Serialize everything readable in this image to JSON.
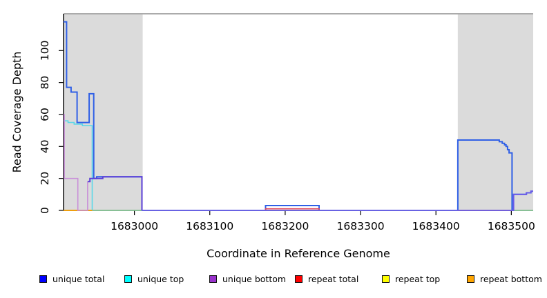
{
  "chart_data": {
    "type": "line",
    "title": "",
    "xlabel": "Coordinate in Reference Genome",
    "ylabel": "Read Coverage Depth",
    "xlim": [
      1682906,
      1683529
    ],
    "ylim": [
      0,
      123
    ],
    "x_ticks": [
      1683000,
      1683100,
      1683200,
      1683300,
      1683400,
      1683500
    ],
    "x_tick_labels": [
      "1683000",
      "1683100",
      "1683200",
      "1683300",
      "1683400",
      "1683500"
    ],
    "y_ticks": [
      0,
      20,
      40,
      60,
      80,
      100
    ],
    "y_tick_labels": [
      "0",
      "20",
      "40",
      "60",
      "80",
      "100"
    ],
    "grid": false,
    "legend_position": "bottom",
    "colors": {
      "shaded_region": "#DBDBDB",
      "plot_top_border": "#8F8F8F",
      "axis": "#000000"
    },
    "shaded_regions": [
      {
        "x0": 1682906,
        "x1": 1683011
      },
      {
        "x0": 1683429,
        "x1": 1683529
      }
    ],
    "series": [
      {
        "name": "unique total",
        "legend_color": "#0000FF",
        "points": [
          [
            1682906,
            118
          ],
          [
            1682910,
            118
          ],
          [
            1682910,
            77
          ],
          [
            1682916,
            77
          ],
          [
            1682916,
            74
          ],
          [
            1682924,
            74
          ],
          [
            1682924,
            55
          ],
          [
            1682940,
            55
          ],
          [
            1682940,
            73
          ],
          [
            1682946,
            73
          ],
          [
            1682946,
            20
          ],
          [
            1682950,
            20
          ],
          [
            1682950,
            21
          ],
          [
            1683010,
            21
          ],
          [
            1683010,
            0
          ],
          [
            1683174,
            0
          ],
          [
            1683174,
            3
          ],
          [
            1683245,
            3
          ],
          [
            1683245,
            0
          ],
          [
            1683429,
            0
          ],
          [
            1683429,
            44
          ],
          [
            1683484,
            44
          ],
          [
            1683484,
            43
          ],
          [
            1683488,
            43
          ],
          [
            1683488,
            42
          ],
          [
            1683491,
            42
          ],
          [
            1683491,
            41
          ],
          [
            1683493,
            41
          ],
          [
            1683493,
            40
          ],
          [
            1683495,
            40
          ],
          [
            1683495,
            38
          ],
          [
            1683497,
            38
          ],
          [
            1683497,
            36
          ],
          [
            1683501,
            36
          ],
          [
            1683501,
            0
          ],
          [
            1683503,
            0
          ],
          [
            1683503,
            10
          ],
          [
            1683520,
            10
          ],
          [
            1683520,
            11
          ],
          [
            1683526,
            11
          ],
          [
            1683526,
            12
          ],
          [
            1683529,
            12
          ]
        ]
      },
      {
        "name": "unique top",
        "legend_color": "#00FFFF",
        "points": [
          [
            1682906,
            56
          ],
          [
            1682912,
            56
          ],
          [
            1682912,
            55
          ],
          [
            1682920,
            55
          ],
          [
            1682920,
            54
          ],
          [
            1682931,
            54
          ],
          [
            1682931,
            53
          ],
          [
            1682944,
            53
          ],
          [
            1682944,
            0
          ],
          [
            1683529,
            0
          ]
        ]
      },
      {
        "name": "unique bottom",
        "legend_color": "#9932CC",
        "points": [
          [
            1682906,
            60
          ],
          [
            1682907,
            60
          ],
          [
            1682907,
            20
          ],
          [
            1682925,
            20
          ],
          [
            1682925,
            0
          ],
          [
            1682938,
            0
          ],
          [
            1682938,
            18
          ],
          [
            1682941,
            18
          ],
          [
            1682941,
            20
          ],
          [
            1682958,
            20
          ],
          [
            1682958,
            21
          ],
          [
            1683010,
            21
          ],
          [
            1683010,
            0
          ],
          [
            1683503,
            0
          ],
          [
            1683503,
            10
          ],
          [
            1683520,
            10
          ],
          [
            1683520,
            11
          ],
          [
            1683526,
            11
          ],
          [
            1683526,
            12
          ],
          [
            1683529,
            12
          ]
        ]
      },
      {
        "name": "repeat total",
        "legend_color": "#FF0000",
        "points": [
          [
            1682906,
            0
          ],
          [
            1683174,
            0
          ],
          [
            1683174,
            1
          ],
          [
            1683245,
            1
          ],
          [
            1683245,
            0
          ],
          [
            1683529,
            0
          ]
        ]
      },
      {
        "name": "repeat top",
        "legend_color": "#FFFF00",
        "points": [
          [
            1682906,
            0
          ],
          [
            1683529,
            0
          ]
        ]
      },
      {
        "name": "repeat bottom",
        "legend_color": "#FFA500",
        "points": [
          [
            1682906,
            0
          ],
          [
            1683529,
            0
          ]
        ]
      }
    ],
    "draw": [
      {
        "series": "unique total",
        "color": "#2F5FE6",
        "width": 2,
        "points": [
          [
            1682906,
            118
          ],
          [
            1682910,
            118
          ],
          [
            1682910,
            77
          ],
          [
            1682916,
            77
          ],
          [
            1682916,
            74
          ],
          [
            1682924,
            74
          ],
          [
            1682924,
            55
          ],
          [
            1682940,
            55
          ],
          [
            1682940,
            73
          ],
          [
            1682946,
            73
          ],
          [
            1682946,
            20
          ],
          [
            1682950,
            20
          ],
          [
            1682950,
            21
          ],
          [
            1683010,
            21
          ],
          [
            1683010,
            0
          ],
          [
            1683174,
            0
          ],
          [
            1683174,
            3
          ],
          [
            1683245,
            3
          ],
          [
            1683245,
            0
          ],
          [
            1683429,
            0
          ],
          [
            1683429,
            44
          ],
          [
            1683484,
            44
          ],
          [
            1683484,
            43
          ],
          [
            1683488,
            43
          ],
          [
            1683488,
            42
          ],
          [
            1683491,
            42
          ],
          [
            1683491,
            41
          ],
          [
            1683493,
            41
          ],
          [
            1683493,
            40
          ],
          [
            1683495,
            40
          ],
          [
            1683495,
            38
          ],
          [
            1683497,
            38
          ],
          [
            1683497,
            36
          ],
          [
            1683501,
            36
          ],
          [
            1683501,
            0
          ],
          [
            1683503,
            0
          ],
          [
            1683503,
            10
          ],
          [
            1683520,
            10
          ],
          [
            1683520,
            11
          ],
          [
            1683526,
            11
          ],
          [
            1683526,
            12
          ],
          [
            1683529,
            12
          ]
        ]
      },
      {
        "series": "unique top",
        "color": "#5CD8E8",
        "width": 1.6,
        "points": [
          [
            1682906,
            56
          ],
          [
            1682912,
            56
          ],
          [
            1682912,
            55
          ],
          [
            1682920,
            55
          ],
          [
            1682920,
            54
          ],
          [
            1682931,
            54
          ],
          [
            1682931,
            53
          ],
          [
            1682944,
            53
          ],
          [
            1682944,
            0
          ]
        ]
      },
      {
        "series": "unique top / repeat top overlap baseline",
        "color": "#8FD8A0",
        "width": 1.4,
        "points": [
          [
            1682944,
            0
          ],
          [
            1683529,
            0
          ]
        ]
      },
      {
        "series": "repeat bottom",
        "color": "#FFA500",
        "width": 1.8,
        "points": [
          [
            1682906,
            0
          ],
          [
            1682944,
            0
          ]
        ]
      },
      {
        "series": "repeat total",
        "color": "#E04858",
        "width": 1.6,
        "points": [
          [
            1683174,
            0
          ],
          [
            1683174,
            1
          ],
          [
            1683245,
            1
          ],
          [
            1683245,
            0
          ]
        ]
      },
      {
        "series": "repeat total",
        "color": "#E04858",
        "width": 1.6,
        "points": [
          [
            1683429,
            0
          ],
          [
            1683501,
            0
          ]
        ]
      },
      {
        "series": "unique bottom",
        "color": "#C98FD8",
        "width": 1.6,
        "points": [
          [
            1682906,
            60
          ],
          [
            1682907,
            60
          ],
          [
            1682907,
            20
          ],
          [
            1682925,
            20
          ],
          [
            1682925,
            0
          ],
          [
            1682938,
            0
          ],
          [
            1682938,
            18
          ]
        ]
      },
      {
        "series": "unique bottom",
        "color": "#5B3FD8",
        "width": 2,
        "points": [
          [
            1682938,
            18
          ],
          [
            1682941,
            18
          ],
          [
            1682941,
            20
          ],
          [
            1682958,
            20
          ],
          [
            1682958,
            21
          ],
          [
            1683010,
            21
          ],
          [
            1683010,
            0
          ]
        ]
      },
      {
        "series": "unique bottom",
        "color": "#6A5AE8",
        "width": 1.8,
        "points": [
          [
            1683010,
            0
          ],
          [
            1683503,
            0
          ],
          [
            1683503,
            10
          ],
          [
            1683520,
            10
          ],
          [
            1683520,
            11
          ],
          [
            1683526,
            11
          ],
          [
            1683526,
            12
          ],
          [
            1683529,
            12
          ]
        ]
      }
    ]
  },
  "legend": {
    "items": [
      {
        "label": "unique total",
        "color": "#0000FF"
      },
      {
        "label": "unique top",
        "color": "#00FFFF"
      },
      {
        "label": "unique bottom",
        "color": "#9932CC"
      },
      {
        "label": "repeat total",
        "color": "#FF0000"
      },
      {
        "label": "repeat top",
        "color": "#FFFF00"
      },
      {
        "label": "repeat bottom",
        "color": "#FFA500"
      }
    ]
  }
}
